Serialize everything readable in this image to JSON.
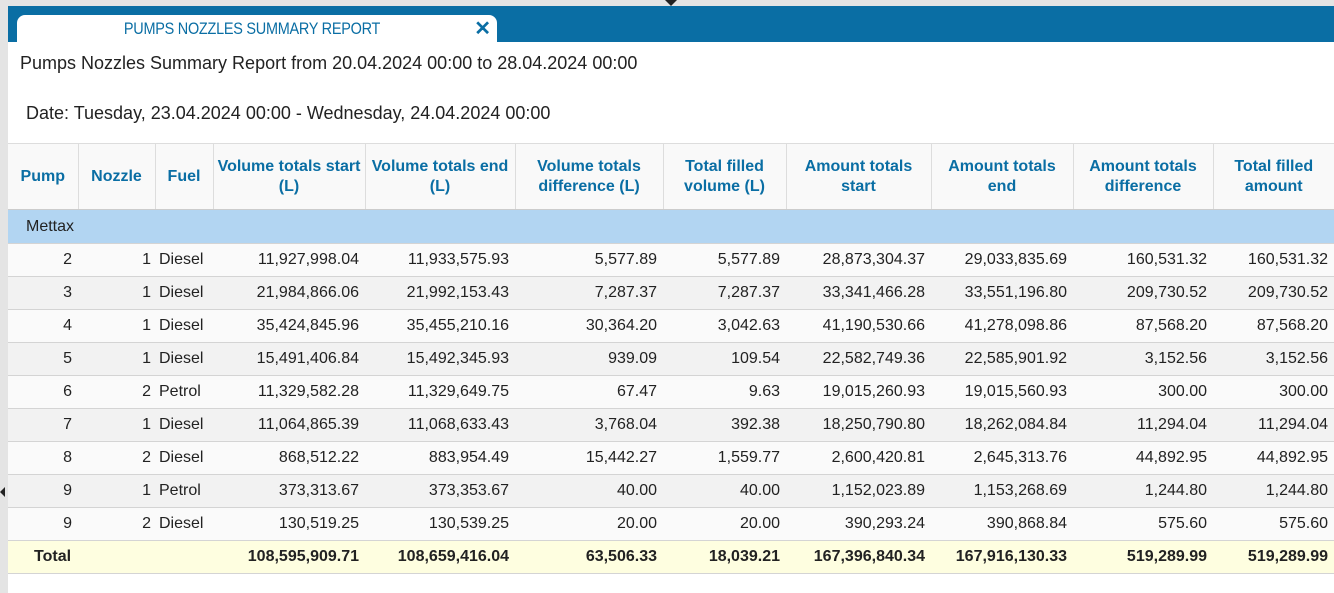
{
  "tab": {
    "title": "PUMPS NOZZLES SUMMARY REPORT",
    "close_icon": "close-icon"
  },
  "report": {
    "title": "Pumps Nozzles Summary Report from 20.04.2024 00:00 to 28.04.2024 00:00",
    "date": "Date: Tuesday, 23.04.2024 00:00 - Wednesday, 24.04.2024 00:00"
  },
  "colors": {
    "accent": "#0a6ea4",
    "group_row": "#b2d5f2",
    "total_row": "#fefee0"
  },
  "table": {
    "columns": [
      "Pump",
      "Nozzle",
      "Fuel",
      "Volume totals start (L)",
      "Volume totals end (L)",
      "Volume totals difference (L)",
      "Total filled volume (L)",
      "Amount totals start",
      "Amount totals end",
      "Amount totals difference",
      "Total filled amount"
    ],
    "group": "Mettax",
    "rows": [
      [
        "2",
        "1",
        "Diesel",
        "11,927,998.04",
        "11,933,575.93",
        "5,577.89",
        "5,577.89",
        "28,873,304.37",
        "29,033,835.69",
        "160,531.32",
        "160,531.32"
      ],
      [
        "3",
        "1",
        "Diesel",
        "21,984,866.06",
        "21,992,153.43",
        "7,287.37",
        "7,287.37",
        "33,341,466.28",
        "33,551,196.80",
        "209,730.52",
        "209,730.52"
      ],
      [
        "4",
        "1",
        "Diesel",
        "35,424,845.96",
        "35,455,210.16",
        "30,364.20",
        "3,042.63",
        "41,190,530.66",
        "41,278,098.86",
        "87,568.20",
        "87,568.20"
      ],
      [
        "5",
        "1",
        "Diesel",
        "15,491,406.84",
        "15,492,345.93",
        "939.09",
        "109.54",
        "22,582,749.36",
        "22,585,901.92",
        "3,152.56",
        "3,152.56"
      ],
      [
        "6",
        "2",
        "Petrol",
        "11,329,582.28",
        "11,329,649.75",
        "67.47",
        "9.63",
        "19,015,260.93",
        "19,015,560.93",
        "300.00",
        "300.00"
      ],
      [
        "7",
        "1",
        "Diesel",
        "11,064,865.39",
        "11,068,633.43",
        "3,768.04",
        "392.38",
        "18,250,790.80",
        "18,262,084.84",
        "11,294.04",
        "11,294.04"
      ],
      [
        "8",
        "2",
        "Diesel",
        "868,512.22",
        "883,954.49",
        "15,442.27",
        "1,559.77",
        "2,600,420.81",
        "2,645,313.76",
        "44,892.95",
        "44,892.95"
      ],
      [
        "9",
        "1",
        "Petrol",
        "373,313.67",
        "373,353.67",
        "40.00",
        "40.00",
        "1,152,023.89",
        "1,153,268.69",
        "1,244.80",
        "1,244.80"
      ],
      [
        "9",
        "2",
        "Diesel",
        "130,519.25",
        "130,539.25",
        "20.00",
        "20.00",
        "390,293.24",
        "390,868.84",
        "575.60",
        "575.60"
      ]
    ],
    "total": {
      "label": "Total",
      "values": [
        "108,595,909.71",
        "108,659,416.04",
        "63,506.33",
        "18,039.21",
        "167,396,840.34",
        "167,916,130.33",
        "519,289.99",
        "519,289.99"
      ]
    }
  }
}
